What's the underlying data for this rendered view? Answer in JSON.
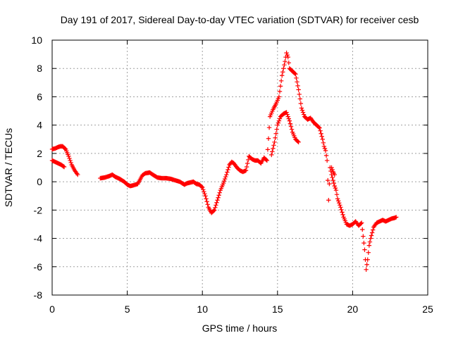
{
  "chart_data": {
    "type": "scatter",
    "title": "Day 191 of 2017, Sidereal Day-to-day VTEC variation (SDTVAR) for receiver cesb",
    "xlabel": "GPS time / hours",
    "ylabel": "SDTVAR / TECUs",
    "xlim": [
      0,
      25
    ],
    "ylim": [
      -8,
      10
    ],
    "xticks": [
      0,
      5,
      10,
      15,
      20,
      25
    ],
    "yticks": [
      -8,
      -6,
      -4,
      -2,
      0,
      2,
      4,
      6,
      8,
      10
    ],
    "xtick_labels": [
      "0",
      "5",
      "10",
      "15",
      "20",
      "25"
    ],
    "ytick_labels": [
      "-8",
      "-6",
      "-4",
      "-2",
      "0",
      "2",
      "4",
      "6",
      "8",
      "10"
    ],
    "grid": true,
    "marker": "+",
    "color": "#ff0000",
    "series": [
      {
        "name": "upper track",
        "x": [
          0.0,
          0.2,
          0.4,
          0.55,
          0.7,
          0.9,
          1.1,
          1.3,
          1.5,
          1.7,
          3.2,
          3.5,
          3.8,
          4.0,
          4.2,
          4.5,
          4.8,
          5.0,
          5.2,
          5.4,
          5.7,
          6.0,
          6.2,
          6.5,
          6.7,
          7.0,
          7.3,
          7.6,
          7.9,
          8.2,
          8.5,
          8.8,
          9.0,
          9.2,
          9.4,
          9.6,
          9.8,
          10.0,
          10.2,
          10.4,
          10.6,
          10.8,
          11.0,
          11.2,
          11.4,
          11.6,
          11.8,
          11.95,
          12.1,
          12.3,
          12.5,
          12.7,
          12.9,
          13.1,
          13.3,
          13.5,
          13.7,
          13.9,
          14.1,
          14.3,
          14.5,
          14.7,
          14.9,
          15.1,
          15.3,
          15.5,
          15.6,
          15.7,
          15.8,
          16.0,
          16.2,
          16.4,
          16.6,
          16.8,
          17.0,
          17.2,
          17.4,
          17.6,
          17.8,
          17.9,
          18.0,
          18.1,
          18.2,
          18.3,
          18.4,
          18.5,
          18.6,
          18.7,
          18.8,
          18.9,
          19.0,
          19.2,
          19.4,
          19.6,
          19.8,
          20.0,
          20.2,
          20.4,
          20.6,
          20.8,
          20.9,
          21.0,
          21.1,
          21.2,
          21.4,
          21.6,
          21.8,
          22.0,
          22.2,
          22.4,
          22.6,
          22.8,
          22.9
        ],
        "y": [
          2.3,
          2.35,
          2.45,
          2.5,
          2.5,
          2.3,
          1.8,
          1.2,
          0.8,
          0.5,
          0.25,
          0.3,
          0.4,
          0.5,
          0.35,
          0.2,
          0.0,
          -0.2,
          -0.3,
          -0.25,
          -0.15,
          0.45,
          0.6,
          0.65,
          0.5,
          0.3,
          0.25,
          0.25,
          0.2,
          0.1,
          0.0,
          -0.2,
          -0.1,
          -0.05,
          0.0,
          -0.15,
          -0.2,
          -0.4,
          -1.0,
          -1.8,
          -2.2,
          -2.0,
          -1.3,
          -0.6,
          -0.1,
          0.5,
          1.2,
          1.4,
          1.3,
          1.0,
          0.8,
          0.7,
          0.8,
          1.8,
          1.6,
          1.5,
          1.5,
          1.3,
          1.7,
          1.5,
          4.6,
          5.1,
          5.5,
          6.0,
          7.5,
          8.5,
          9.1,
          8.8,
          8.0,
          7.8,
          7.6,
          6.5,
          5.2,
          4.6,
          4.4,
          4.5,
          4.2,
          4.0,
          3.8,
          3.4,
          3.0,
          2.5,
          2.2,
          1.5,
          -1.3,
          1.0,
          0.5,
          0.1,
          -0.3,
          -0.6,
          -1.2,
          -1.8,
          -2.5,
          -3.0,
          -3.1,
          -3.0,
          -2.8,
          -3.1,
          -2.9,
          -4.8,
          -6.2,
          -5.5,
          -4.5,
          -4.0,
          -3.2,
          -2.9,
          -2.8,
          -2.7,
          -2.8,
          -2.7,
          -2.6,
          -2.55,
          -2.5
        ]
      },
      {
        "name": "lower track",
        "x": [
          0.0,
          0.2,
          0.4,
          0.6,
          0.8,
          14.6,
          14.8,
          15.0,
          15.2,
          15.4,
          15.6,
          15.8,
          16.0,
          16.2,
          16.4,
          18.6,
          18.7,
          18.8
        ],
        "y": [
          1.5,
          1.4,
          1.3,
          1.2,
          1.05,
          1.9,
          2.8,
          4.0,
          4.6,
          4.8,
          4.9,
          4.3,
          3.5,
          3.0,
          2.8,
          1.0,
          0.7,
          0.5
        ]
      }
    ]
  }
}
